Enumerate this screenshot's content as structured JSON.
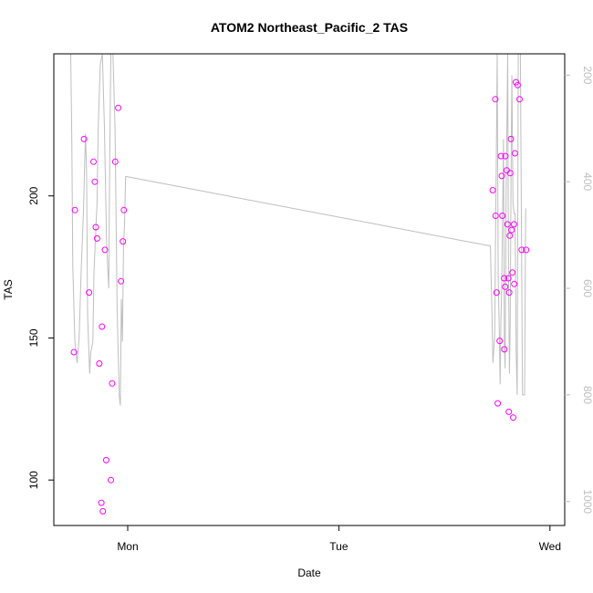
{
  "chart_data": {
    "type": "scatter",
    "title": "ATOM2 Northeast_Pacific_2 TAS",
    "xlabel": "Date",
    "ylabel": "TAS",
    "x_axis": {
      "type": "time",
      "ticks": [
        "Mon",
        "Tue",
        "Wed"
      ],
      "xlim": [
        -0.35,
        2.07
      ]
    },
    "y_axis": {
      "ticks": [
        100,
        150,
        200
      ],
      "ylim": [
        84,
        250
      ]
    },
    "y2_axis": {
      "ticks": [
        200,
        400,
        600,
        800,
        1000
      ],
      "ylim": [
        1045,
        160
      ],
      "color": "#bebebe"
    },
    "grid": false,
    "colors": {
      "points": "#ff00ff",
      "line": "#bebebe"
    },
    "series": [
      {
        "kind": "points",
        "axis": "left",
        "x": [
          -0.255,
          -0.25,
          -0.207,
          -0.183,
          -0.162,
          -0.156,
          -0.151,
          -0.145,
          -0.135,
          -0.125,
          -0.122,
          -0.118,
          -0.108,
          -0.102,
          -0.08,
          -0.074,
          -0.059,
          -0.045,
          -0.032,
          -0.023,
          -0.018,
          1.729,
          1.741,
          1.743,
          1.747,
          1.753,
          1.762,
          1.768,
          1.772,
          1.775,
          1.783,
          1.784,
          1.788,
          1.789,
          1.795,
          1.799,
          1.803,
          1.805,
          1.807,
          1.81,
          1.812,
          1.815,
          1.818,
          1.822,
          1.826,
          1.83,
          1.831,
          1.834,
          1.839,
          1.847,
          1.856,
          1.866,
          1.887
        ],
        "y": [
          145,
          195,
          220,
          166,
          212,
          205,
          189,
          185,
          141,
          92,
          154,
          89,
          181,
          107,
          100,
          134,
          212,
          231,
          170,
          184,
          195,
          202,
          234,
          193,
          166,
          127,
          149,
          214,
          207,
          193,
          171,
          146,
          168,
          214,
          209,
          190,
          171,
          124,
          166,
          186,
          208,
          220,
          188,
          173,
          122,
          190,
          169,
          215,
          240,
          239,
          234,
          181,
          181
        ]
      }
    ]
  }
}
